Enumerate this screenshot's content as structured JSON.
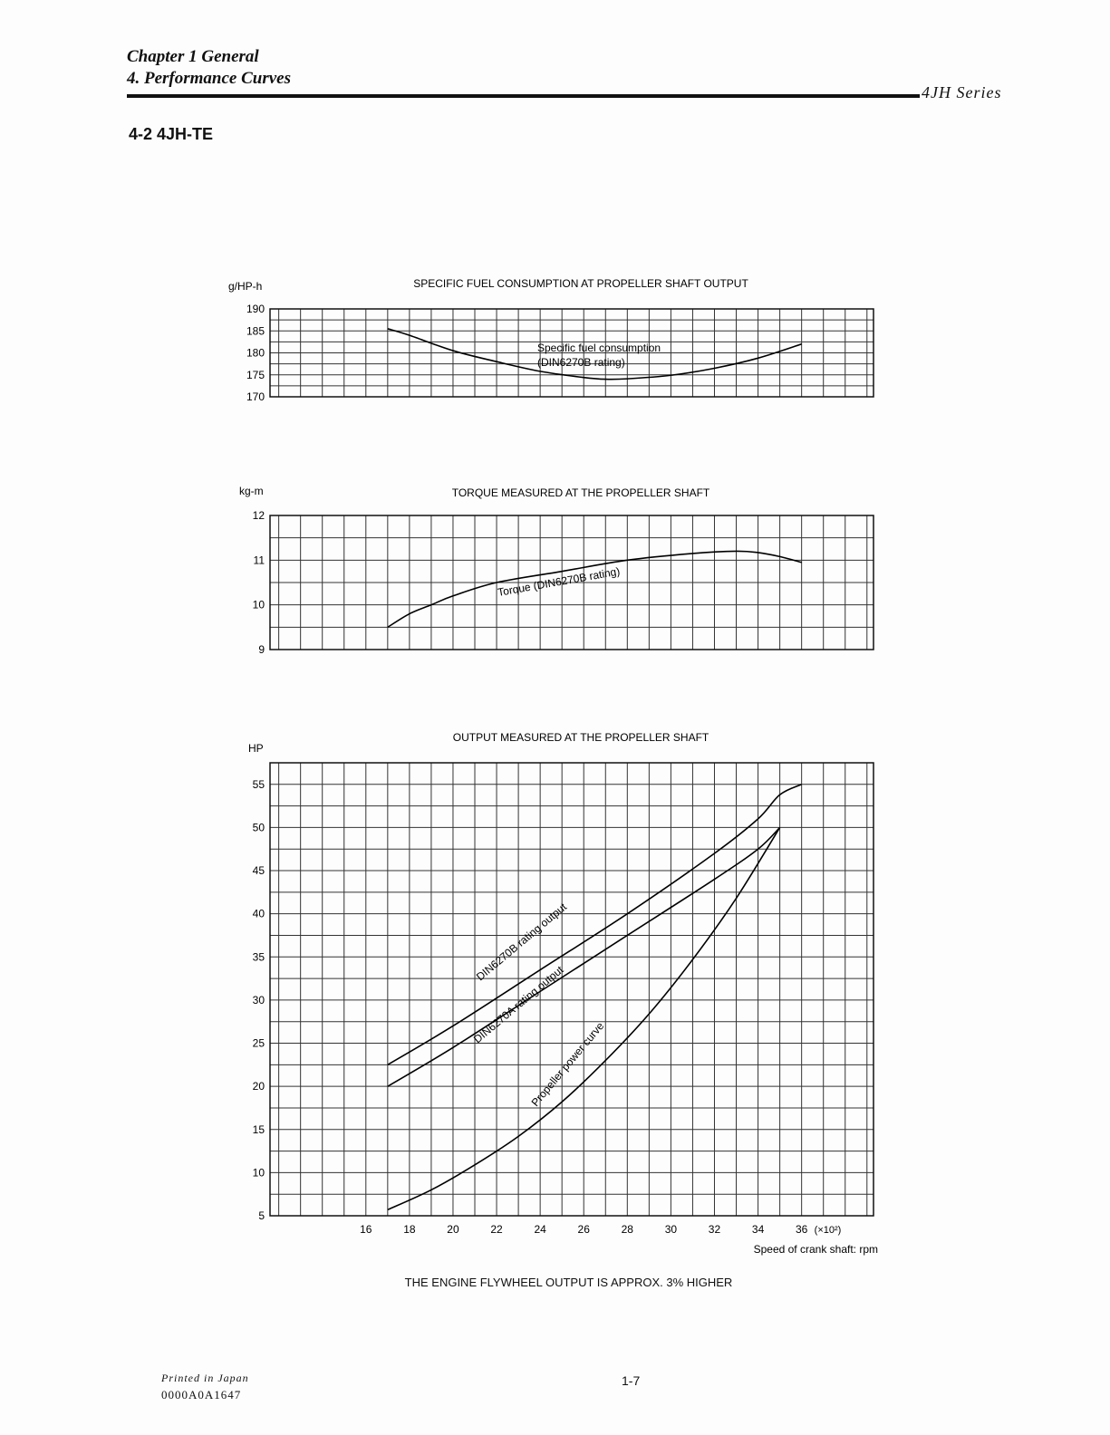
{
  "header": {
    "chapter": "Chapter 1 General",
    "section": "4. Performance Curves",
    "series": "4JH Series"
  },
  "section_title": "4-2 4JH-TE",
  "footer": {
    "printed": "Printed in Japan",
    "code": "0000A0A1647",
    "page": "1-7"
  },
  "note": "THE ENGINE FLYWHEEL OUTPUT IS APPROX. 3% HIGHER",
  "chart_data": [
    {
      "type": "line",
      "title": "SPECIFIC FUEL CONSUMPTION AT PROPELLER SHAFT OUTPUT",
      "ylabel": "g/HP-h",
      "ylim": [
        170,
        190
      ],
      "yticks": [
        170,
        175,
        180,
        185,
        190
      ],
      "ygrid_step": 2.5,
      "xlim": [
        11.6,
        39.3
      ],
      "grid": true,
      "series": [
        {
          "name": "Specific fuel consumption (DIN6270B rating)",
          "label_lines": [
            "Specific fuel consumption",
            "(DIN6270B rating)"
          ],
          "x": [
            17,
            18,
            20,
            22,
            24,
            26,
            27,
            28,
            30,
            32,
            34,
            36
          ],
          "y": [
            185.5,
            184,
            180.5,
            178,
            175.8,
            174.4,
            174,
            174.1,
            174.9,
            176.5,
            178.8,
            182
          ]
        }
      ]
    },
    {
      "type": "line",
      "title": "TORQUE MEASURED AT THE PROPELLER SHAFT",
      "ylabel": "kg-m",
      "ylim": [
        9,
        12
      ],
      "yticks": [
        9,
        10,
        11,
        12
      ],
      "ygrid_step": 0.5,
      "xlim": [
        11.6,
        39.3
      ],
      "grid": true,
      "series": [
        {
          "name": "Torque (DIN6270B rating)",
          "x": [
            17,
            18,
            19,
            20,
            22,
            25,
            28,
            31,
            33,
            34,
            35,
            36
          ],
          "y": [
            9.5,
            9.8,
            10.0,
            10.2,
            10.5,
            10.75,
            11.0,
            11.15,
            11.2,
            11.17,
            11.08,
            10.95
          ]
        }
      ]
    },
    {
      "type": "line",
      "title": "OUTPUT MEASURED AT THE PROPELLER SHAFT",
      "ylabel": "HP",
      "ylim": [
        5,
        57.5
      ],
      "yticks": [
        5,
        10,
        15,
        20,
        25,
        30,
        35,
        40,
        45,
        50,
        55
      ],
      "ygrid_step": 2.5,
      "xlim": [
        11.6,
        39.3
      ],
      "grid": true,
      "xticks": [
        16,
        18,
        20,
        22,
        24,
        26,
        28,
        30,
        32,
        34,
        36
      ],
      "xtick_suffix": "(×10²)",
      "xlabel": "Speed of crank shaft: rpm",
      "series": [
        {
          "name": "DIN6270B rating output",
          "x": [
            17,
            20,
            24,
            28,
            32,
            34,
            35,
            36
          ],
          "y": [
            22.5,
            27,
            33.5,
            40,
            47,
            51,
            53.8,
            55
          ]
        },
        {
          "name": "DIN6270A rating output",
          "x": [
            17,
            20,
            24,
            28,
            32,
            34,
            35
          ],
          "y": [
            20,
            24.5,
            31,
            37.5,
            44,
            47.5,
            50
          ]
        },
        {
          "name": "Propeller power curve",
          "x": [
            17,
            19,
            21,
            23,
            25,
            27,
            29,
            31,
            33,
            35
          ],
          "y": [
            5.7,
            8,
            10.9,
            14.2,
            18.2,
            23,
            28.4,
            34.7,
            41.8,
            50
          ]
        }
      ]
    }
  ]
}
